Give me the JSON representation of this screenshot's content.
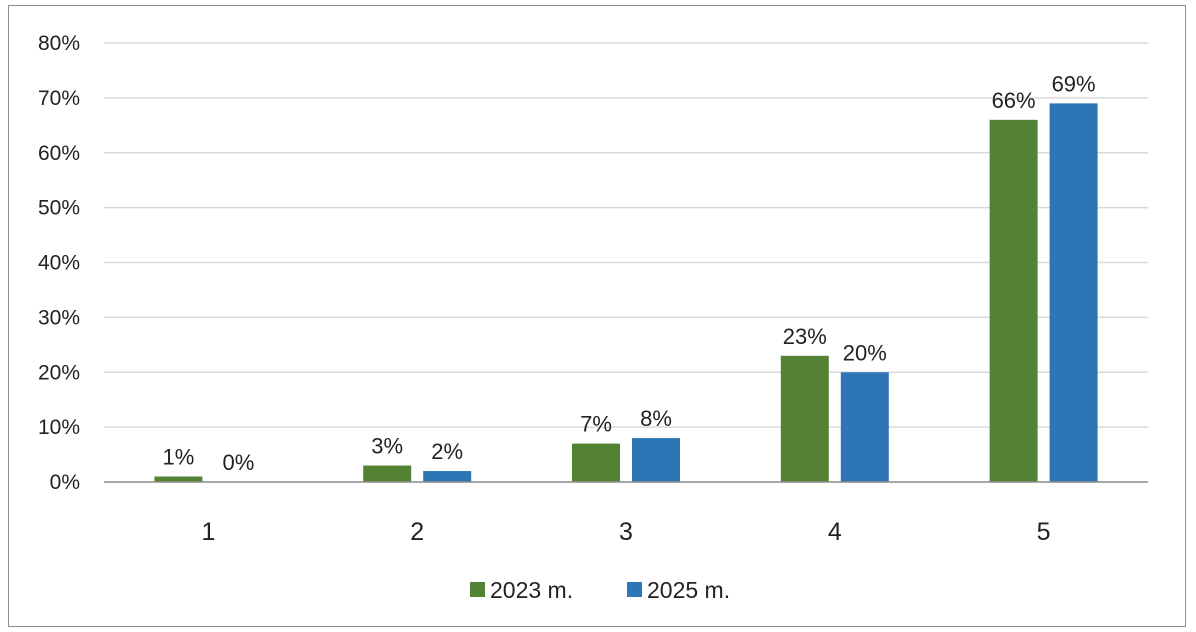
{
  "chart_data": {
    "type": "bar",
    "categories": [
      "1",
      "2",
      "3",
      "4",
      "5"
    ],
    "series": [
      {
        "name": "2023 m.",
        "color": "#548235",
        "values": [
          1,
          3,
          7,
          23,
          66
        ]
      },
      {
        "name": "2025 m.",
        "color": "#2e75b6",
        "values": [
          0,
          2,
          8,
          20,
          69
        ]
      }
    ],
    "data_labels": [
      [
        "1%",
        "3%",
        "7%",
        "23%",
        "66%"
      ],
      [
        "0%",
        "2%",
        "8%",
        "20%",
        "69%"
      ]
    ],
    "y_ticks": [
      "0%",
      "10%",
      "20%",
      "30%",
      "40%",
      "50%",
      "60%",
      "70%",
      "80%"
    ],
    "ylim": [
      0,
      80
    ],
    "unit": "%",
    "grid": true,
    "legend_position": "bottom"
  }
}
